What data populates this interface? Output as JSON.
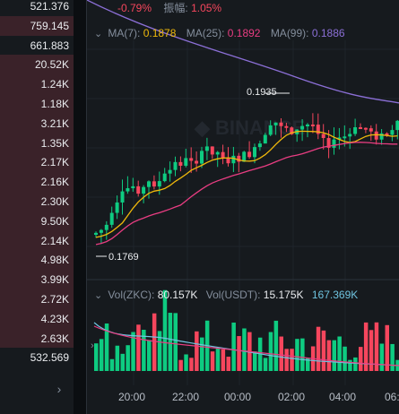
{
  "left_volumes": [
    {
      "label": "521.376",
      "bg": "#161a1e"
    },
    {
      "label": "759.145",
      "bg": "#3a2229"
    },
    {
      "label": "661.883",
      "bg": "#161a1e"
    },
    {
      "label": "20.52K",
      "bg": "#3a2229"
    },
    {
      "label": "1.24K",
      "bg": "#3a2229"
    },
    {
      "label": "1.18K",
      "bg": "#3a2229"
    },
    {
      "label": "3.21K",
      "bg": "#3a2229"
    },
    {
      "label": "1.35K",
      "bg": "#3a2229"
    },
    {
      "label": "2.17K",
      "bg": "#3a2229"
    },
    {
      "label": "2.16K",
      "bg": "#3a2229"
    },
    {
      "label": "2.30K",
      "bg": "#3a2229"
    },
    {
      "label": "9.50K",
      "bg": "#3a2229"
    },
    {
      "label": "2.14K",
      "bg": "#3a2229"
    },
    {
      "label": "4.98K",
      "bg": "#3a2229"
    },
    {
      "label": "3.99K",
      "bg": "#3a2229"
    },
    {
      "label": "2.72K",
      "bg": "#3a2229"
    },
    {
      "label": "4.23K",
      "bg": "#3a2229"
    },
    {
      "label": "2.63K",
      "bg": "#3a2229"
    },
    {
      "label": "532.569",
      "bg": "#161a1e"
    }
  ],
  "expand_glyph": "›",
  "stats": {
    "change": "-0.79%",
    "amplitude_label": "振幅:",
    "amplitude": "1.05%"
  },
  "ma": {
    "ma7_label": "MA(7):",
    "ma7": "0.1878",
    "ma7_color": "#f0b90b",
    "ma25_label": "MA(25):",
    "ma25": "0.1892",
    "ma25_color": "#e93d82",
    "ma99_label": "MA(99):",
    "ma99": "0.1886",
    "ma99_color": "#8b6fd6"
  },
  "price_labels": {
    "high": "0.1935",
    "low": "0.1769"
  },
  "volume": {
    "vol_zkc_label": "Vol(ZKC):",
    "vol_zkc": "80.157K",
    "vol_usdt_label": "Vol(USDT):",
    "vol_usdt": "15.175K",
    "vol_ma": "167.369K"
  },
  "time_axis": [
    "20:00",
    "22:00",
    "00:00",
    "02:00",
    "04:00",
    "06:"
  ],
  "colors": {
    "up": "#0ecb81",
    "down": "#f6465d"
  }
}
